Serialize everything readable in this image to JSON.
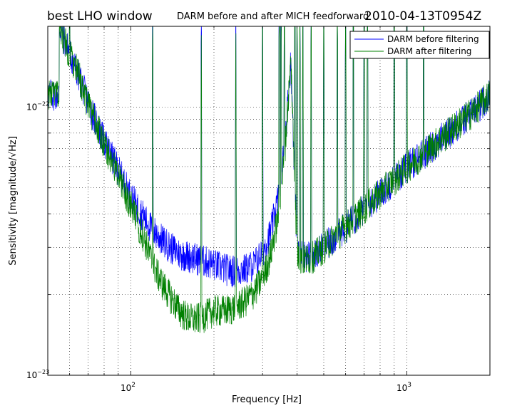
{
  "chart_data": {
    "type": "line",
    "title_left": "best LHO window",
    "title_center": "DARM before and after MICH feedforward",
    "title_right": "2010-04-13T0954Z",
    "xlabel": "Frequency [Hz]",
    "ylabel": "Sensitivity [magnitude/√Hz]",
    "x_scale": "log",
    "y_scale": "log",
    "xlim": [
      50,
      2000
    ],
    "ylim": [
      1e-23,
      2e-22
    ],
    "x_ticks": [
      {
        "value": 100,
        "base": "10",
        "exp": "2"
      },
      {
        "value": 1000,
        "base": "10",
        "exp": "3"
      }
    ],
    "y_ticks": [
      {
        "value": 1e-23,
        "base": "10",
        "exp": "−23"
      },
      {
        "value": 1e-22,
        "base": "10",
        "exp": "−22"
      }
    ],
    "grid": true,
    "legend_position": "top-right",
    "series": [
      {
        "name": "DARM before filtering",
        "color": "#0000ff",
        "points": [
          [
            55,
            2e-22
          ],
          [
            60,
            1.6e-22
          ],
          [
            65,
            1.3e-22
          ],
          [
            70,
            1.05e-22
          ],
          [
            75,
            8.8e-23
          ],
          [
            80,
            7.5e-23
          ],
          [
            85,
            6.6e-23
          ],
          [
            90,
            5.9e-23
          ],
          [
            95,
            5.2e-23
          ],
          [
            100,
            4.7e-23
          ],
          [
            105,
            4.3e-23
          ],
          [
            110,
            4e-23
          ],
          [
            115,
            3.7e-23
          ],
          [
            120,
            3.5e-23
          ],
          [
            130,
            3.2e-23
          ],
          [
            140,
            3e-23
          ],
          [
            150,
            2.85e-23
          ],
          [
            160,
            2.8e-23
          ],
          [
            170,
            2.75e-23
          ],
          [
            180,
            2.7e-23
          ],
          [
            190,
            2.65e-23
          ],
          [
            200,
            2.6e-23
          ],
          [
            220,
            2.5e-23
          ],
          [
            240,
            2.45e-23
          ],
          [
            260,
            2.5e-23
          ],
          [
            280,
            2.6e-23
          ],
          [
            300,
            2.9e-23
          ],
          [
            320,
            3.4e-23
          ],
          [
            340,
            4.5e-23
          ],
          [
            360,
            7e-23
          ],
          [
            380,
            1.5e-22
          ],
          [
            400,
            3e-23
          ],
          [
            420,
            2.8e-23
          ],
          [
            450,
            2.8e-23
          ],
          [
            500,
            3e-23
          ],
          [
            550,
            3.3e-23
          ],
          [
            600,
            3.6e-23
          ],
          [
            700,
            4.2e-23
          ],
          [
            800,
            4.8e-23
          ],
          [
            900,
            5.4e-23
          ],
          [
            1000,
            6e-23
          ],
          [
            1200,
            7e-23
          ],
          [
            1400,
            8e-23
          ],
          [
            1600,
            9e-23
          ],
          [
            1800,
            1e-22
          ],
          [
            2000,
            1.12e-22
          ]
        ]
      },
      {
        "name": "DARM after filtering",
        "color": "#008000",
        "points": [
          [
            55,
            2e-22
          ],
          [
            60,
            1.6e-22
          ],
          [
            65,
            1.3e-22
          ],
          [
            70,
            1.03e-22
          ],
          [
            75,
            8.6e-23
          ],
          [
            80,
            7.3e-23
          ],
          [
            85,
            6.4e-23
          ],
          [
            90,
            5.6e-23
          ],
          [
            95,
            4.9e-23
          ],
          [
            100,
            4.3e-23
          ],
          [
            105,
            3.8e-23
          ],
          [
            110,
            3.4e-23
          ],
          [
            115,
            3e-23
          ],
          [
            120,
            2.6e-23
          ],
          [
            130,
            2.2e-23
          ],
          [
            140,
            1.95e-23
          ],
          [
            150,
            1.75e-23
          ],
          [
            160,
            1.65e-23
          ],
          [
            170,
            1.62e-23
          ],
          [
            180,
            1.65e-23
          ],
          [
            190,
            1.7e-23
          ],
          [
            200,
            1.75e-23
          ],
          [
            220,
            1.75e-23
          ],
          [
            240,
            1.8e-23
          ],
          [
            260,
            1.9e-23
          ],
          [
            280,
            2.05e-23
          ],
          [
            300,
            2.3e-23
          ],
          [
            320,
            2.8e-23
          ],
          [
            340,
            3.8e-23
          ],
          [
            360,
            6.5e-23
          ],
          [
            380,
            1.5e-22
          ],
          [
            400,
            2.8e-23
          ],
          [
            420,
            2.7e-23
          ],
          [
            450,
            2.75e-23
          ],
          [
            500,
            3e-23
          ],
          [
            550,
            3.3e-23
          ],
          [
            600,
            3.6e-23
          ],
          [
            700,
            4.2e-23
          ],
          [
            800,
            4.8e-23
          ],
          [
            900,
            5.4e-23
          ],
          [
            1000,
            6e-23
          ],
          [
            1200,
            7e-23
          ],
          [
            1400,
            8e-23
          ],
          [
            1600,
            9e-23
          ],
          [
            1800,
            1e-22
          ],
          [
            2000,
            1.12e-22
          ]
        ]
      }
    ],
    "spikes_hz": [
      60,
      120,
      180,
      240,
      300,
      345,
      350,
      360,
      393,
      400,
      410,
      420,
      450,
      500,
      560,
      600,
      640,
      700,
      720,
      900,
      1000,
      1150
    ]
  }
}
